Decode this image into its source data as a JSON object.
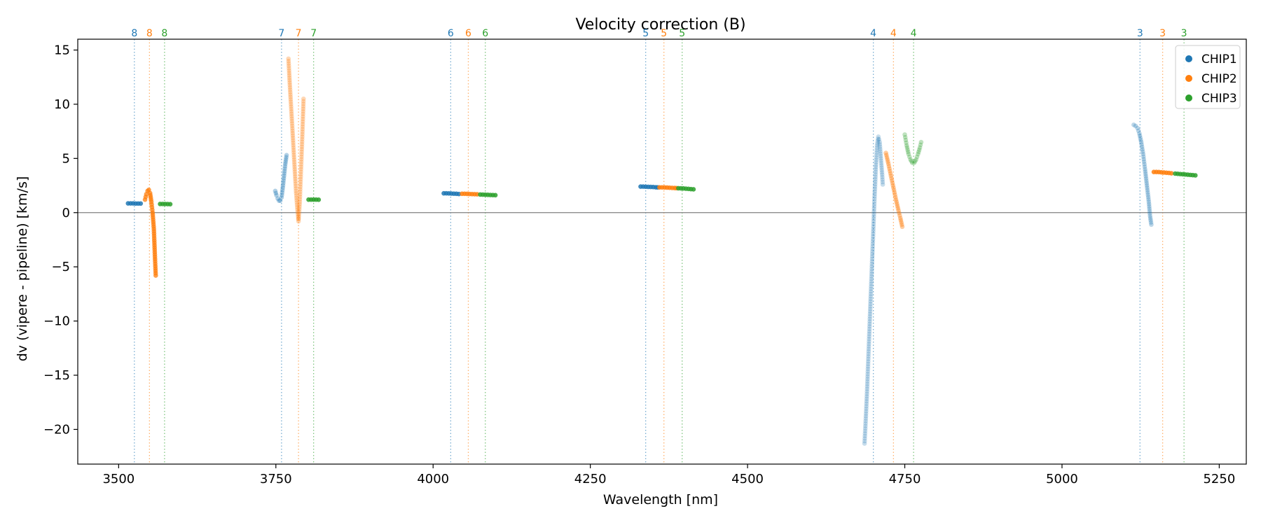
{
  "chart_data": {
    "type": "scatter",
    "title": "Velocity correction (B)",
    "xlabel": "Wavelength [nm]",
    "ylabel": "dv (vipere - pipeline) [km/s]",
    "xlim": [
      3435,
      5293
    ],
    "ylim": [
      -23.2,
      16.0
    ],
    "xticks": [
      3500,
      3750,
      4000,
      4250,
      4500,
      4750,
      5000,
      5250
    ],
    "yticks": [
      15,
      10,
      5,
      0,
      -5,
      -10,
      -15,
      -20
    ],
    "xtick_labels": [
      "3500",
      "3750",
      "4000",
      "4250",
      "4500",
      "4750",
      "5000",
      "5250"
    ],
    "ytick_labels": [
      "15",
      "10",
      "5",
      "0",
      "−5",
      "−10",
      "−15",
      "−20"
    ],
    "zero_line": 0,
    "colors": {
      "CHIP1": "#1f77b4",
      "CHIP2": "#ff7f0e",
      "CHIP3": "#2ca02c"
    },
    "legend": {
      "position": "top-right",
      "entries": [
        "CHIP1",
        "CHIP2",
        "CHIP3"
      ]
    },
    "order_markers": [
      {
        "order": "8",
        "chip": "CHIP1",
        "x": 3525
      },
      {
        "order": "8",
        "chip": "CHIP2",
        "x": 3549
      },
      {
        "order": "8",
        "chip": "CHIP3",
        "x": 3573
      },
      {
        "order": "7",
        "chip": "CHIP1",
        "x": 3759
      },
      {
        "order": "7",
        "chip": "CHIP2",
        "x": 3786
      },
      {
        "order": "7",
        "chip": "CHIP3",
        "x": 3810
      },
      {
        "order": "6",
        "chip": "CHIP1",
        "x": 4028
      },
      {
        "order": "6",
        "chip": "CHIP2",
        "x": 4056
      },
      {
        "order": "6",
        "chip": "CHIP3",
        "x": 4083
      },
      {
        "order": "5",
        "chip": "CHIP1",
        "x": 4338
      },
      {
        "order": "5",
        "chip": "CHIP2",
        "x": 4367
      },
      {
        "order": "5",
        "chip": "CHIP3",
        "x": 4396
      },
      {
        "order": "4",
        "chip": "CHIP1",
        "x": 4700
      },
      {
        "order": "4",
        "chip": "CHIP2",
        "x": 4732
      },
      {
        "order": "4",
        "chip": "CHIP3",
        "x": 4764
      },
      {
        "order": "3",
        "chip": "CHIP1",
        "x": 5124
      },
      {
        "order": "3",
        "chip": "CHIP2",
        "x": 5160
      },
      {
        "order": "3",
        "chip": "CHIP3",
        "x": 5194
      }
    ],
    "series": [
      {
        "name": "CHIP1",
        "order": "8",
        "alpha": 0.85,
        "points": [
          [
            3515,
            0.85
          ],
          [
            3519,
            0.85
          ],
          [
            3523,
            0.85
          ],
          [
            3527,
            0.84
          ],
          [
            3531,
            0.84
          ],
          [
            3535,
            0.84
          ]
        ]
      },
      {
        "name": "CHIP2",
        "order": "8",
        "alpha": 0.75,
        "points": [
          [
            3542,
            1.2
          ],
          [
            3544,
            1.7
          ],
          [
            3546,
            2.0
          ],
          [
            3548,
            2.1
          ],
          [
            3550,
            1.8
          ],
          [
            3552,
            1.0
          ],
          [
            3554,
            0.0
          ],
          [
            3556,
            -1.5
          ],
          [
            3557,
            -3.0
          ],
          [
            3558,
            -4.5
          ],
          [
            3559,
            -5.8
          ]
        ]
      },
      {
        "name": "CHIP3",
        "order": "8",
        "alpha": 0.85,
        "points": [
          [
            3566,
            0.8
          ],
          [
            3570,
            0.8
          ],
          [
            3574,
            0.8
          ],
          [
            3578,
            0.79
          ],
          [
            3582,
            0.78
          ]
        ]
      },
      {
        "name": "CHIP1",
        "order": "7",
        "alpha": 0.35,
        "points": [
          [
            3749,
            2.0
          ],
          [
            3751,
            1.6
          ],
          [
            3753,
            1.3
          ],
          [
            3755,
            1.1
          ],
          [
            3757,
            1.1
          ],
          [
            3759,
            1.4
          ],
          [
            3761,
            2.3
          ],
          [
            3763,
            3.4
          ],
          [
            3765,
            4.5
          ],
          [
            3767,
            5.3
          ]
        ]
      },
      {
        "name": "CHIP2",
        "order": "7",
        "alpha": 0.3,
        "points": [
          [
            3770,
            14.2
          ],
          [
            3772,
            12.0
          ],
          [
            3774,
            10.0
          ],
          [
            3776,
            8.0
          ],
          [
            3778,
            6.0
          ],
          [
            3780,
            4.0
          ],
          [
            3782,
            2.0
          ],
          [
            3784,
            0.5
          ],
          [
            3786,
            -0.8
          ],
          [
            3788,
            1.0
          ],
          [
            3790,
            4.0
          ],
          [
            3792,
            7.0
          ],
          [
            3794,
            10.5
          ]
        ]
      },
      {
        "name": "CHIP3",
        "order": "7",
        "alpha": 0.85,
        "points": [
          [
            3802,
            1.2
          ],
          [
            3806,
            1.2
          ],
          [
            3810,
            1.2
          ],
          [
            3814,
            1.2
          ],
          [
            3818,
            1.19
          ]
        ]
      },
      {
        "name": "CHIP1",
        "order": "6",
        "alpha": 0.85,
        "points": [
          [
            4017,
            1.78
          ],
          [
            4021,
            1.78
          ],
          [
            4025,
            1.77
          ],
          [
            4029,
            1.76
          ],
          [
            4033,
            1.75
          ],
          [
            4037,
            1.74
          ],
          [
            4041,
            1.72
          ]
        ]
      },
      {
        "name": "CHIP2",
        "order": "6",
        "alpha": 0.85,
        "points": [
          [
            4046,
            1.74
          ],
          [
            4050,
            1.74
          ],
          [
            4054,
            1.73
          ],
          [
            4058,
            1.72
          ],
          [
            4062,
            1.71
          ],
          [
            4066,
            1.7
          ],
          [
            4070,
            1.69
          ]
        ]
      },
      {
        "name": "CHIP3",
        "order": "6",
        "alpha": 0.85,
        "points": [
          [
            4075,
            1.67
          ],
          [
            4079,
            1.66
          ],
          [
            4083,
            1.65
          ],
          [
            4087,
            1.64
          ],
          [
            4091,
            1.63
          ],
          [
            4095,
            1.62
          ],
          [
            4099,
            1.61
          ]
        ]
      },
      {
        "name": "CHIP1",
        "order": "5",
        "alpha": 0.85,
        "points": [
          [
            4330,
            2.4
          ],
          [
            4334,
            2.4
          ],
          [
            4338,
            2.39
          ],
          [
            4342,
            2.38
          ],
          [
            4346,
            2.37
          ],
          [
            4350,
            2.36
          ],
          [
            4354,
            2.34
          ],
          [
            4357,
            2.33
          ]
        ]
      },
      {
        "name": "CHIP2",
        "order": "5",
        "alpha": 0.85,
        "points": [
          [
            4360,
            2.33
          ],
          [
            4364,
            2.33
          ],
          [
            4368,
            2.32
          ],
          [
            4372,
            2.31
          ],
          [
            4376,
            2.3
          ],
          [
            4380,
            2.28
          ],
          [
            4384,
            2.27
          ],
          [
            4387,
            2.26
          ]
        ]
      },
      {
        "name": "CHIP3",
        "order": "5",
        "alpha": 0.85,
        "points": [
          [
            4390,
            2.25
          ],
          [
            4394,
            2.24
          ],
          [
            4398,
            2.23
          ],
          [
            4402,
            2.21
          ],
          [
            4406,
            2.19
          ],
          [
            4410,
            2.17
          ],
          [
            4414,
            2.15
          ]
        ]
      },
      {
        "name": "CHIP1",
        "order": "4",
        "alpha": 0.25,
        "points": [
          [
            4686,
            -21.3
          ],
          [
            4688,
            -19.0
          ],
          [
            4690,
            -16.5
          ],
          [
            4692,
            -13.5
          ],
          [
            4694,
            -10.5
          ],
          [
            4696,
            -7.5
          ],
          [
            4698,
            -4.5
          ],
          [
            4700,
            -1.5
          ],
          [
            4702,
            1.5
          ],
          [
            4704,
            4.2
          ],
          [
            4706,
            6.2
          ],
          [
            4708,
            7.0
          ],
          [
            4710,
            6.5
          ],
          [
            4712,
            5.0
          ],
          [
            4714,
            3.5
          ],
          [
            4715,
            2.6
          ]
        ]
      },
      {
        "name": "CHIP2",
        "order": "4",
        "alpha": 0.4,
        "points": [
          [
            4720,
            5.5
          ],
          [
            4724,
            4.5
          ],
          [
            4728,
            3.4
          ],
          [
            4732,
            2.3
          ],
          [
            4736,
            1.2
          ],
          [
            4740,
            0.2
          ],
          [
            4743,
            -0.5
          ],
          [
            4746,
            -1.3
          ]
        ]
      },
      {
        "name": "CHIP3",
        "order": "4",
        "alpha": 0.3,
        "points": [
          [
            4750,
            7.2
          ],
          [
            4753,
            6.2
          ],
          [
            4756,
            5.4
          ],
          [
            4759,
            4.9
          ],
          [
            4762,
            4.6
          ],
          [
            4765,
            4.6
          ],
          [
            4768,
            4.9
          ],
          [
            4771,
            5.4
          ],
          [
            4774,
            6.0
          ],
          [
            4776,
            6.5
          ]
        ]
      },
      {
        "name": "CHIP1",
        "order": "3",
        "alpha": 0.3,
        "points": [
          [
            5114,
            8.1
          ],
          [
            5117,
            8.0
          ],
          [
            5120,
            7.8
          ],
          [
            5123,
            7.3
          ],
          [
            5126,
            6.5
          ],
          [
            5129,
            5.4
          ],
          [
            5132,
            4.0
          ],
          [
            5135,
            2.5
          ],
          [
            5138,
            1.0
          ],
          [
            5140,
            -0.3
          ],
          [
            5142,
            -1.1
          ]
        ]
      },
      {
        "name": "CHIP2",
        "order": "3",
        "alpha": 0.85,
        "points": [
          [
            5146,
            3.75
          ],
          [
            5150,
            3.75
          ],
          [
            5154,
            3.74
          ],
          [
            5158,
            3.72
          ],
          [
            5162,
            3.7
          ],
          [
            5166,
            3.68
          ],
          [
            5170,
            3.66
          ],
          [
            5174,
            3.63
          ]
        ]
      },
      {
        "name": "CHIP3",
        "order": "3",
        "alpha": 0.85,
        "points": [
          [
            5180,
            3.6
          ],
          [
            5184,
            3.58
          ],
          [
            5188,
            3.56
          ],
          [
            5192,
            3.54
          ],
          [
            5196,
            3.52
          ],
          [
            5200,
            3.5
          ],
          [
            5204,
            3.48
          ],
          [
            5208,
            3.46
          ],
          [
            5212,
            3.44
          ]
        ]
      }
    ]
  }
}
